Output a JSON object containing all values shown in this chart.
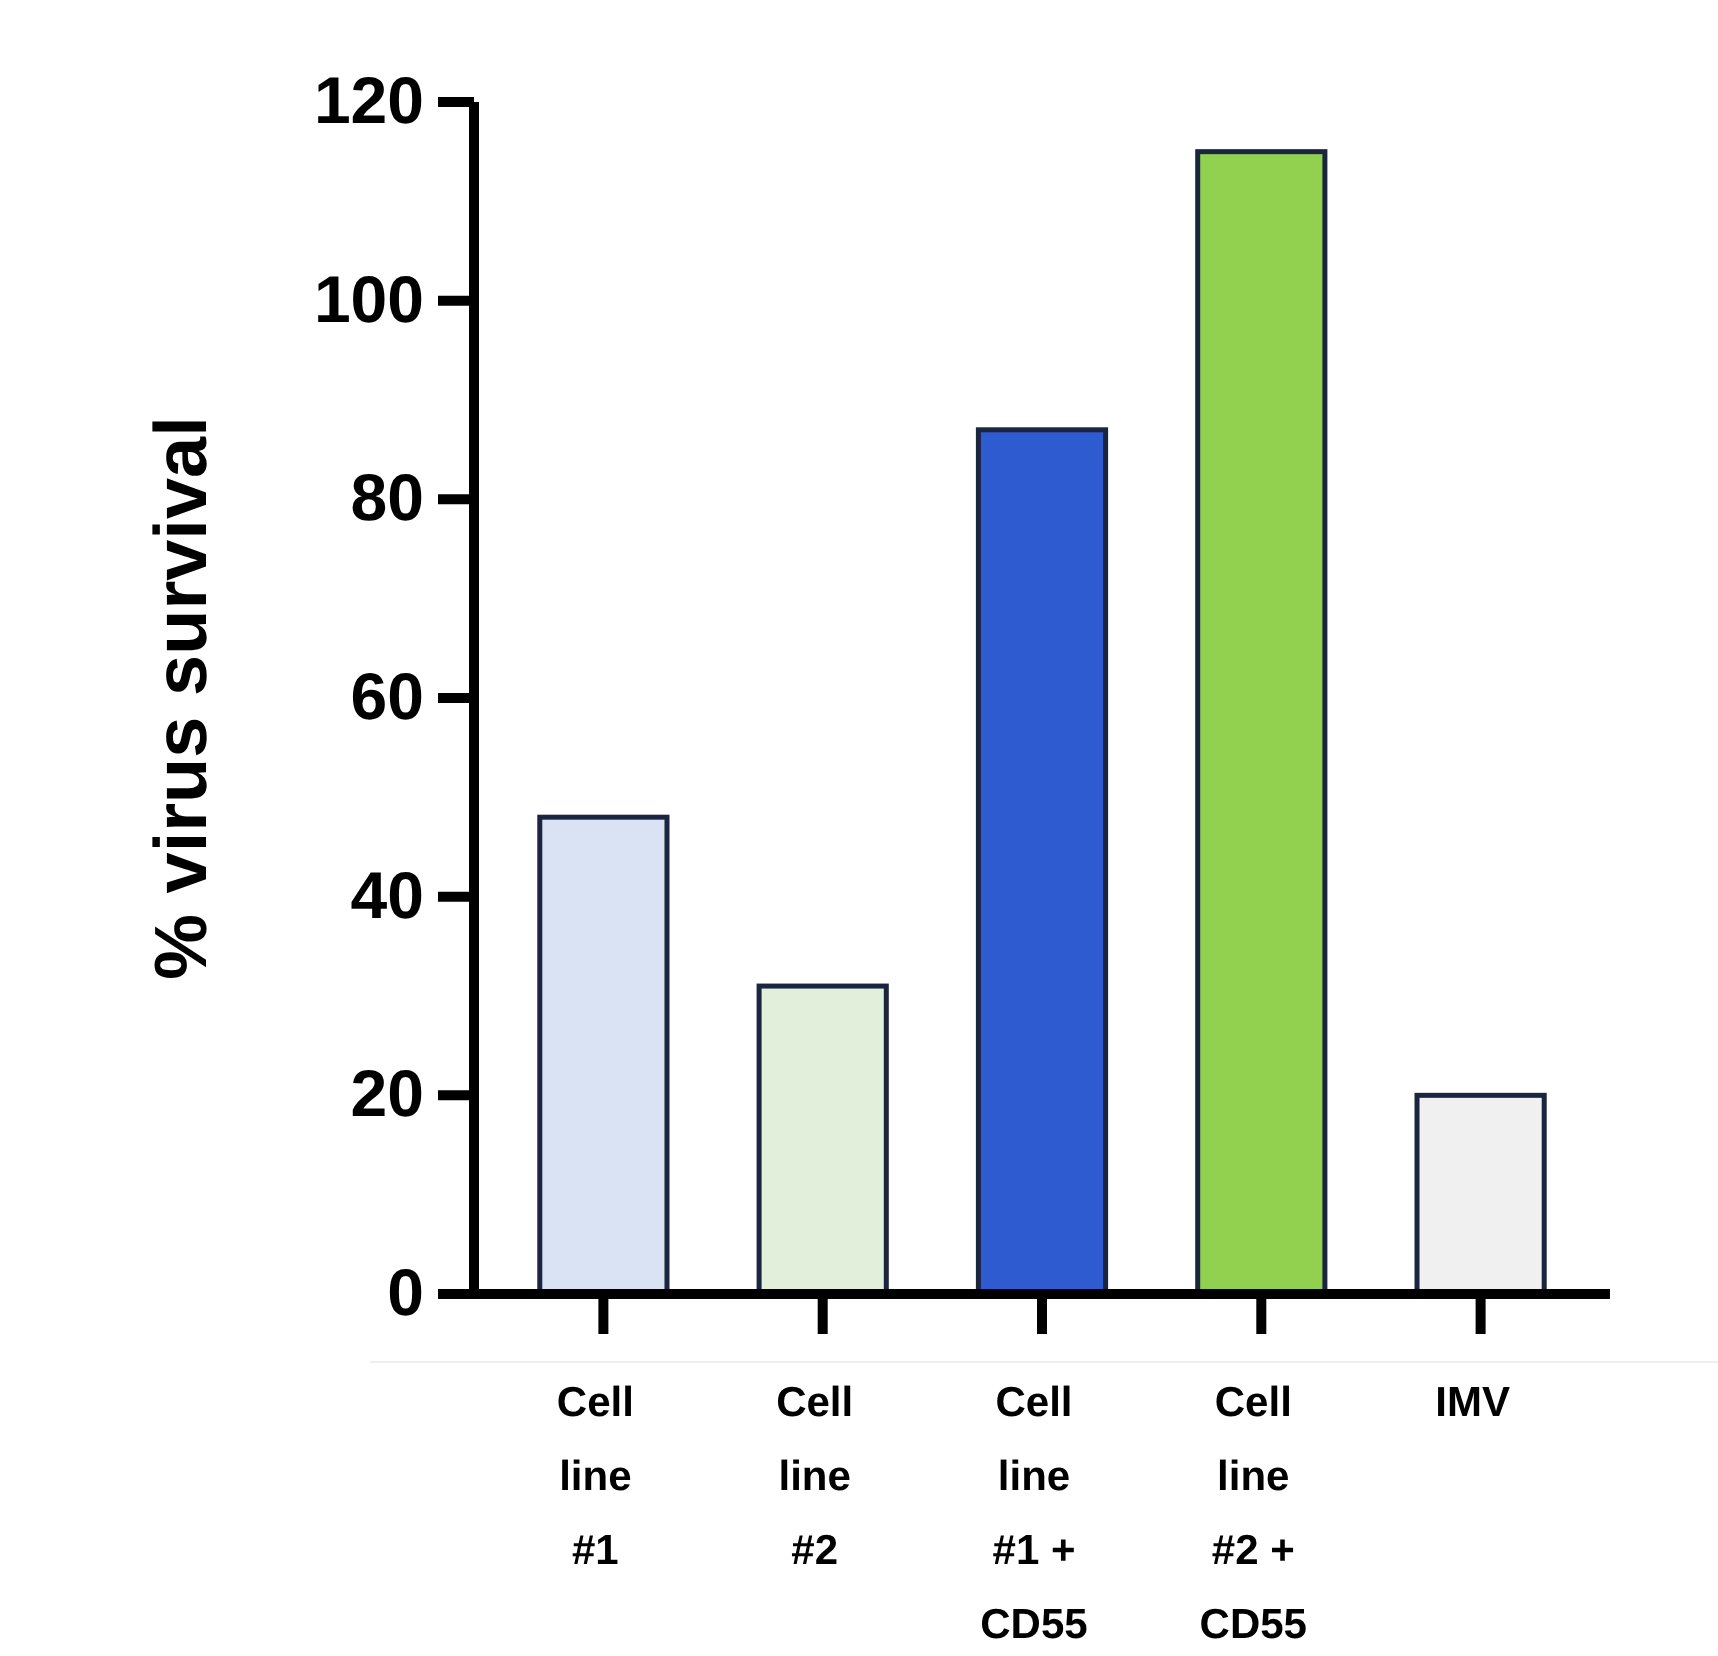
{
  "chart_data": {
    "type": "bar",
    "ylabel": "% virus survival",
    "categories": [
      "Cell line #1",
      "Cell line #2",
      "Cell line #1 + CD55",
      "Cell line #2 + CD55",
      "IMV"
    ],
    "values": [
      48,
      31,
      87,
      115,
      20
    ],
    "colors": [
      "#dae3f3",
      "#e2efda",
      "#2f5bd0",
      "#92d050",
      "#f0f0f0"
    ],
    "ylim": [
      0,
      120
    ],
    "yticks": [
      0,
      20,
      40,
      60,
      80,
      100,
      120
    ],
    "grid": false
  }
}
